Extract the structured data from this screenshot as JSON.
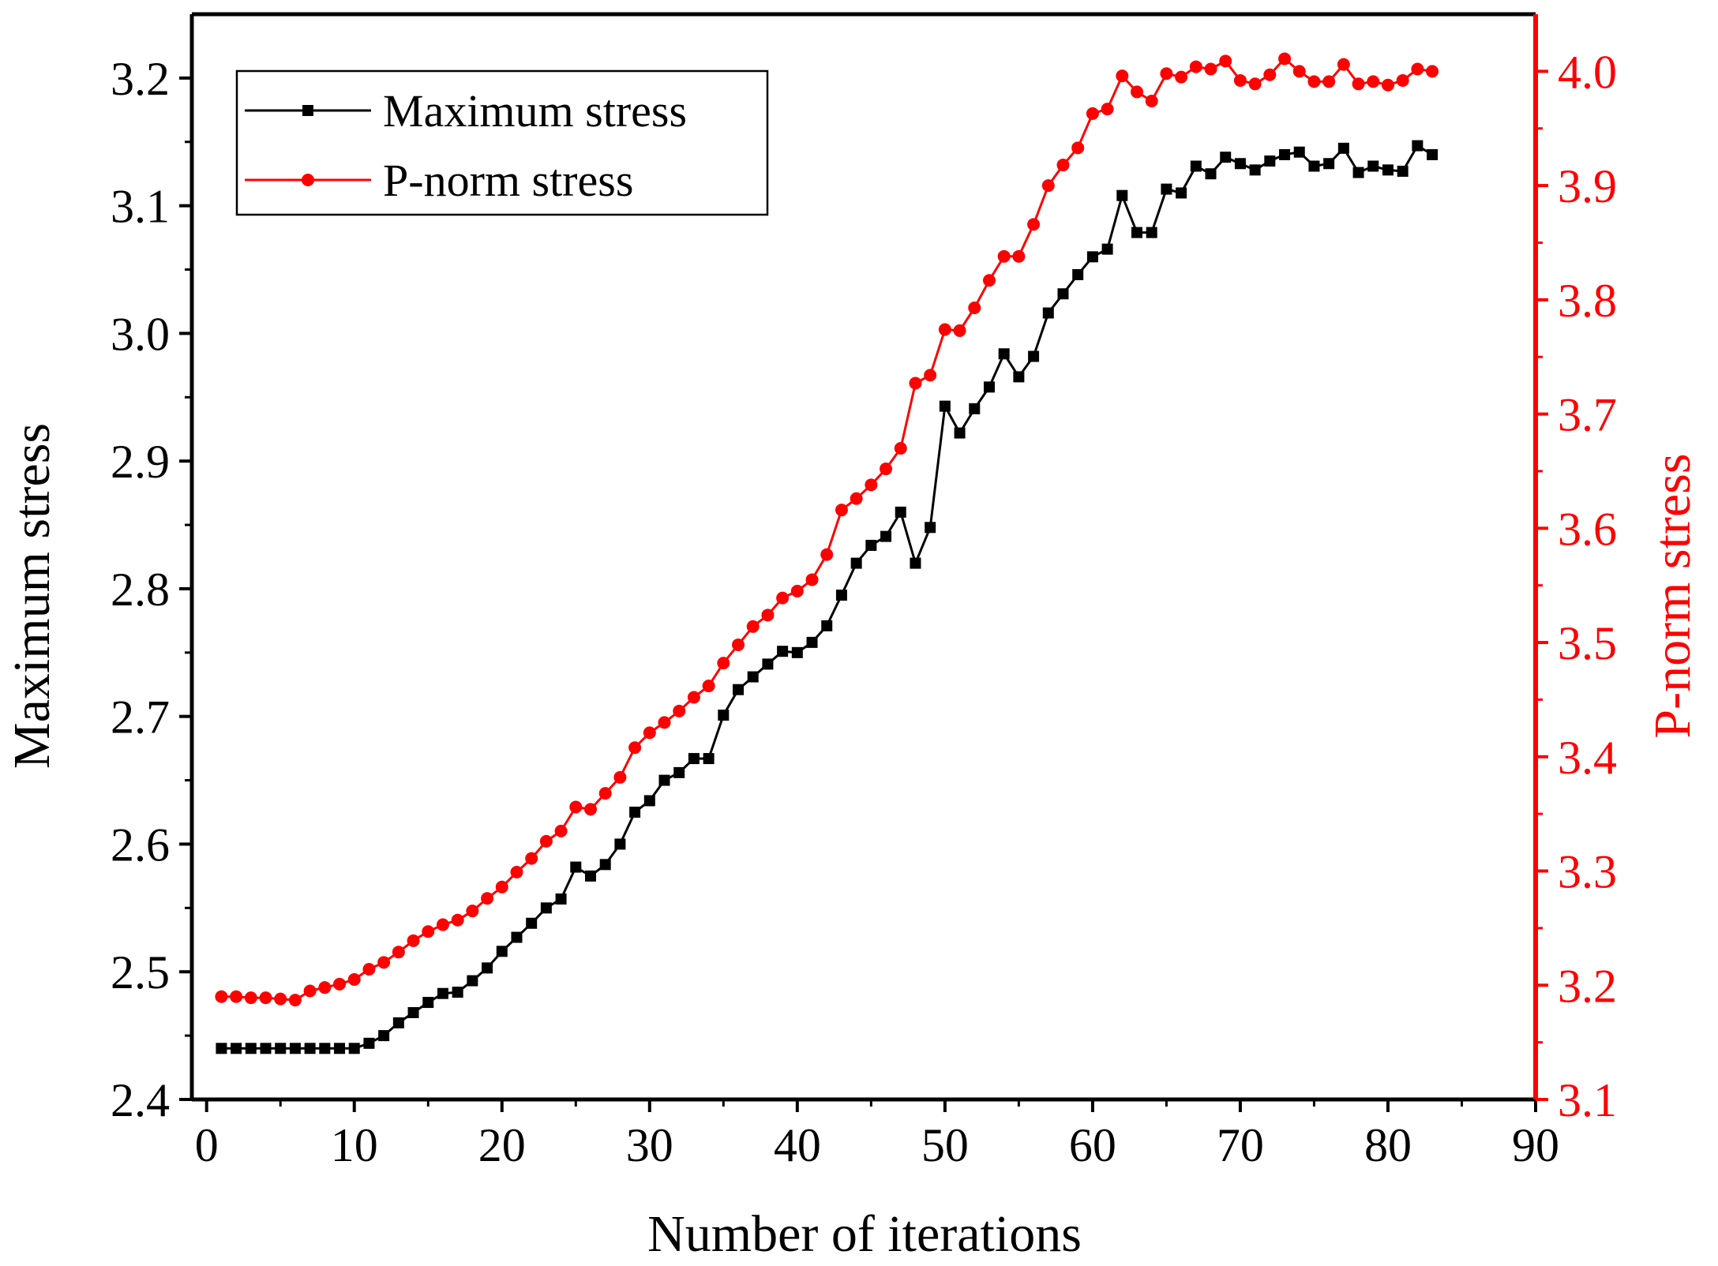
{
  "chart_data": {
    "type": "line",
    "xlabel": "Number of iterations",
    "xlim": [
      -1,
      90
    ],
    "xticks": [
      0,
      10,
      20,
      30,
      40,
      50,
      60,
      70,
      80,
      90
    ],
    "left_axis": {
      "label": "Maximum stress",
      "ylim": [
        2.4,
        3.25
      ],
      "ticks": [
        2.4,
        2.5,
        2.6,
        2.7,
        2.8,
        2.9,
        3.0,
        3.1,
        3.2
      ],
      "tick_labels": [
        "2.4",
        "2.5",
        "2.6",
        "2.7",
        "2.8",
        "2.9",
        "3.0",
        "3.1",
        "3.2"
      ],
      "color": "#000000"
    },
    "right_axis": {
      "label": "P-norm stress",
      "ylim": [
        3.1,
        4.05
      ],
      "ticks": [
        3.1,
        3.2,
        3.3,
        3.4,
        3.5,
        3.6,
        3.7,
        3.8,
        3.9,
        4.0
      ],
      "tick_labels": [
        "3.1",
        "3.2",
        "3.3",
        "3.4",
        "3.5",
        "3.6",
        "3.7",
        "3.8",
        "3.9",
        "4.0"
      ],
      "color": "#ff0000"
    },
    "legend_position": "top-left",
    "series": [
      {
        "name": "Maximum stress",
        "axis": "left",
        "color": "#000000",
        "marker": "square",
        "x": [
          1,
          2,
          3,
          4,
          5,
          6,
          7,
          8,
          9,
          10,
          11,
          12,
          13,
          14,
          15,
          16,
          17,
          18,
          19,
          20,
          21,
          22,
          23,
          24,
          25,
          26,
          27,
          28,
          29,
          30,
          31,
          32,
          33,
          34,
          35,
          36,
          37,
          38,
          39,
          40,
          41,
          42,
          43,
          44,
          45,
          46,
          47,
          48,
          49,
          50,
          51,
          52,
          53,
          54,
          55,
          56,
          57,
          58,
          59,
          60,
          61,
          62,
          63,
          64,
          65,
          66,
          67,
          68,
          69,
          70,
          71,
          72,
          73,
          74,
          75,
          76,
          77,
          78,
          79,
          80,
          81,
          82,
          83
        ],
        "y": [
          2.44,
          2.44,
          2.44,
          2.44,
          2.44,
          2.44,
          2.44,
          2.44,
          2.44,
          2.44,
          2.444,
          2.45,
          2.46,
          2.468,
          2.476,
          2.483,
          2.484,
          2.493,
          2.503,
          2.516,
          2.527,
          2.538,
          2.55,
          2.557,
          2.582,
          2.575,
          2.584,
          2.6,
          2.625,
          2.634,
          2.65,
          2.656,
          2.667,
          2.667,
          2.701,
          2.721,
          2.731,
          2.741,
          2.751,
          2.75,
          2.758,
          2.771,
          2.795,
          2.82,
          2.834,
          2.841,
          2.86,
          2.82,
          2.848,
          2.943,
          2.922,
          2.941,
          2.958,
          2.984,
          2.966,
          2.982,
          3.016,
          3.031,
          3.046,
          3.06,
          3.066,
          3.108,
          3.079,
          3.079,
          3.113,
          3.11,
          3.131,
          3.125,
          3.138,
          3.133,
          3.128,
          3.135,
          3.14,
          3.142,
          3.131,
          3.133,
          3.145,
          3.126,
          3.131,
          3.128,
          3.127,
          3.147,
          3.14
        ]
      },
      {
        "name": "P-norm stress",
        "axis": "right",
        "color": "#ff0000",
        "marker": "circle",
        "x": [
          1,
          2,
          3,
          4,
          5,
          6,
          7,
          8,
          9,
          10,
          11,
          12,
          13,
          14,
          15,
          16,
          17,
          18,
          19,
          20,
          21,
          22,
          23,
          24,
          25,
          26,
          27,
          28,
          29,
          30,
          31,
          32,
          33,
          34,
          35,
          36,
          37,
          38,
          39,
          40,
          41,
          42,
          43,
          44,
          45,
          46,
          47,
          48,
          49,
          50,
          51,
          52,
          53,
          54,
          55,
          56,
          57,
          58,
          59,
          60,
          61,
          62,
          63,
          64,
          65,
          66,
          67,
          68,
          69,
          70,
          71,
          72,
          73,
          74,
          75,
          76,
          77,
          78,
          79,
          80,
          81,
          82,
          83
        ],
        "y": [
          3.19,
          3.19,
          3.189,
          3.189,
          3.188,
          3.187,
          3.195,
          3.198,
          3.201,
          3.205,
          3.214,
          3.22,
          3.229,
          3.239,
          3.247,
          3.253,
          3.257,
          3.265,
          3.276,
          3.286,
          3.299,
          3.311,
          3.326,
          3.335,
          3.356,
          3.354,
          3.368,
          3.382,
          3.408,
          3.421,
          3.43,
          3.44,
          3.452,
          3.462,
          3.482,
          3.498,
          3.514,
          3.524,
          3.539,
          3.545,
          3.555,
          3.577,
          3.616,
          3.626,
          3.638,
          3.652,
          3.67,
          3.727,
          3.734,
          3.774,
          3.773,
          3.793,
          3.817,
          3.838,
          3.838,
          3.866,
          3.9,
          3.918,
          3.933,
          3.963,
          3.967,
          3.996,
          3.982,
          3.974,
          3.998,
          3.995,
          4.004,
          4.002,
          4.009,
          3.992,
          3.989,
          3.997,
          4.011,
          4.0,
          3.991,
          3.991,
          4.006,
          3.989,
          3.991,
          3.988,
          3.992,
          4.002,
          4.0
        ]
      }
    ]
  }
}
